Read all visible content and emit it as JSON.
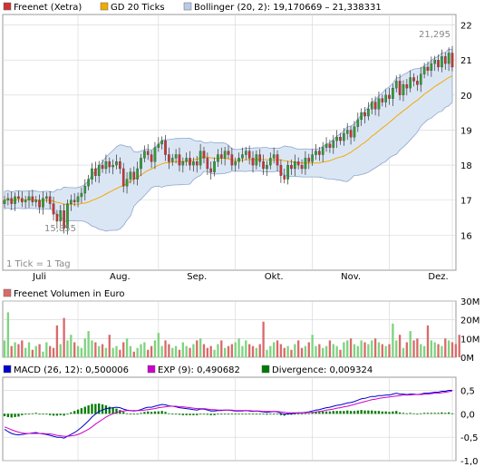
{
  "colors": {
    "price": "#cc3333",
    "sma": "#f2a900",
    "bollinger_fill": "#dbe6f5",
    "bollinger_line": "#8ea6cc",
    "grid": "#d4d4d4",
    "volume_up": "#7fd37f",
    "volume_down": "#d96a6a",
    "macd": "#0000cc",
    "signal": "#cc00cc",
    "divergence": "#007a00"
  },
  "chart_data": [
    {
      "type": "candlestick",
      "legend": [
        {
          "label": "Freenet (Xetra)",
          "swatch": "price"
        },
        {
          "label": "GD 20 Ticks",
          "swatch": "sma"
        },
        {
          "label": "Bollinger (20, 2): 19,170669 – 21,338331",
          "swatch": "bollinger_fill"
        }
      ],
      "y_ticks": [
        "22",
        "21",
        "20",
        "19",
        "18",
        "17",
        "16"
      ],
      "ylim": [
        15.0,
        22.3
      ],
      "x_tick_labels": [
        "Juli",
        "Aug.",
        "Sep.",
        "Okt.",
        "Nov.",
        "Dez."
      ],
      "annotation_high": "21,295",
      "annotation_low": "15,855",
      "footnote": "1 Tick = 1 Tag",
      "closes": [
        17.0,
        17.05,
        16.9,
        17.1,
        17.05,
        16.95,
        17.0,
        17.1,
        16.95,
        17.0,
        16.8,
        17.05,
        17.1,
        16.9,
        16.6,
        16.4,
        16.7,
        16.2,
        16.9,
        17.0,
        16.95,
        17.1,
        17.2,
        17.4,
        17.6,
        17.9,
        17.7,
        18.0,
        17.9,
        18.1,
        17.95,
        18.0,
        18.1,
        17.9,
        17.4,
        17.6,
        17.8,
        17.6,
        17.9,
        18.2,
        18.4,
        18.3,
        18.1,
        18.5,
        18.6,
        18.7,
        18.3,
        18.1,
        18.2,
        18.3,
        18.0,
        18.1,
        18.2,
        18.0,
        18.1,
        18.0,
        18.4,
        18.2,
        17.9,
        17.8,
        18.1,
        18.3,
        18.2,
        18.4,
        18.3,
        18.0,
        18.1,
        18.2,
        18.3,
        18.4,
        18.2,
        18.0,
        18.3,
        18.1,
        17.9,
        18.0,
        18.2,
        18.3,
        18.0,
        17.7,
        17.6,
        18.0,
        17.9,
        18.1,
        18.0,
        17.9,
        18.2,
        18.1,
        18.3,
        18.4,
        18.3,
        18.5,
        18.6,
        18.5,
        18.7,
        18.8,
        18.7,
        18.9,
        19.0,
        18.8,
        19.1,
        19.3,
        19.5,
        19.4,
        19.6,
        19.8,
        19.6,
        19.9,
        19.8,
        20.0,
        19.9,
        20.2,
        20.4,
        20.0,
        20.3,
        20.2,
        20.5,
        20.4,
        20.3,
        20.6,
        20.8,
        20.7,
        20.9,
        21.0,
        20.8,
        21.1,
        20.9,
        21.2,
        20.8
      ]
    },
    {
      "type": "bar",
      "legend": [
        {
          "label": "Freenet Volumen in Euro",
          "swatch": "volume_down"
        }
      ],
      "y_ticks": [
        "30M",
        "20M",
        "10M",
        "0M"
      ],
      "ylim": [
        0,
        30
      ],
      "values": [
        9,
        24,
        6,
        8,
        7,
        9,
        5,
        8,
        4,
        6,
        7,
        3,
        8,
        6,
        5,
        17,
        7,
        21,
        9,
        12,
        8,
        6,
        5,
        10,
        14,
        9,
        8,
        6,
        7,
        5,
        12,
        5,
        6,
        4,
        8,
        10,
        6,
        3,
        5,
        7,
        8,
        4,
        6,
        9,
        13,
        6,
        9,
        7,
        5,
        6,
        4,
        8,
        6,
        5,
        7,
        9,
        10,
        7,
        5,
        6,
        4,
        7,
        9,
        5,
        6,
        7,
        8,
        10,
        6,
        9,
        7,
        6,
        5,
        7,
        19,
        4,
        6,
        8,
        9,
        7,
        5,
        6,
        4,
        7,
        9,
        5,
        6,
        8,
        12,
        6,
        7,
        5,
        6,
        9,
        7,
        6,
        4,
        8,
        9,
        10,
        7,
        6,
        9,
        8,
        7,
        9,
        10,
        8,
        7,
        6,
        7,
        18,
        9,
        12,
        5,
        8,
        14,
        9,
        10,
        7,
        6,
        17,
        9,
        8,
        7,
        6,
        10,
        9,
        8,
        7,
        12
      ]
    },
    {
      "type": "line",
      "legend": [
        {
          "label": "MACD (26, 12): 0,500006",
          "swatch": "macd"
        },
        {
          "label": "EXP (9): 0,490682",
          "swatch": "signal"
        },
        {
          "label": "Divergence: 0,009324",
          "swatch": "divergence"
        }
      ],
      "y_ticks": [
        "0,5",
        "0,0",
        "-0,5",
        "-1,0"
      ],
      "ylim": [
        -1.0,
        0.78
      ],
      "series": [
        {
          "name": "MACD (26, 12)",
          "values": [
            -0.33,
            -0.38,
            -0.42,
            -0.44,
            -0.45,
            -0.44,
            -0.43,
            -0.42,
            -0.41,
            -0.4,
            -0.42,
            -0.43,
            -0.44,
            -0.46,
            -0.48,
            -0.5,
            -0.5,
            -0.52,
            -0.48,
            -0.44,
            -0.4,
            -0.35,
            -0.29,
            -0.22,
            -0.15,
            -0.07,
            -0.01,
            0.05,
            0.08,
            0.11,
            0.12,
            0.13,
            0.14,
            0.13,
            0.1,
            0.08,
            0.07,
            0.06,
            0.07,
            0.09,
            0.12,
            0.14,
            0.14,
            0.16,
            0.18,
            0.2,
            0.19,
            0.17,
            0.16,
            0.15,
            0.13,
            0.12,
            0.11,
            0.1,
            0.09,
            0.08,
            0.1,
            0.1,
            0.08,
            0.06,
            0.06,
            0.07,
            0.07,
            0.08,
            0.08,
            0.07,
            0.06,
            0.06,
            0.06,
            0.07,
            0.06,
            0.05,
            0.06,
            0.05,
            0.04,
            0.03,
            0.04,
            0.05,
            0.04,
            0.01,
            -0.01,
            0.0,
            0.0,
            0.01,
            0.02,
            0.02,
            0.03,
            0.04,
            0.06,
            0.08,
            0.09,
            0.11,
            0.13,
            0.14,
            0.16,
            0.18,
            0.19,
            0.21,
            0.23,
            0.24,
            0.26,
            0.29,
            0.32,
            0.33,
            0.35,
            0.37,
            0.37,
            0.39,
            0.39,
            0.4,
            0.4,
            0.42,
            0.44,
            0.42,
            0.42,
            0.41,
            0.42,
            0.42,
            0.41,
            0.42,
            0.44,
            0.44,
            0.45,
            0.46,
            0.46,
            0.48,
            0.48,
            0.5,
            0.5
          ]
        },
        {
          "name": "EXP (9)",
          "values": [
            -0.28,
            -0.31,
            -0.34,
            -0.37,
            -0.39,
            -0.41,
            -0.42,
            -0.42,
            -0.42,
            -0.42,
            -0.42,
            -0.42,
            -0.43,
            -0.43,
            -0.44,
            -0.46,
            -0.47,
            -0.48,
            -0.48,
            -0.47,
            -0.46,
            -0.44,
            -0.41,
            -0.37,
            -0.33,
            -0.28,
            -0.22,
            -0.17,
            -0.12,
            -0.07,
            -0.03,
            0.0,
            0.03,
            0.05,
            0.06,
            0.07,
            0.07,
            0.07,
            0.07,
            0.07,
            0.08,
            0.09,
            0.1,
            0.11,
            0.13,
            0.14,
            0.15,
            0.16,
            0.16,
            0.16,
            0.15,
            0.15,
            0.14,
            0.13,
            0.12,
            0.11,
            0.11,
            0.11,
            0.1,
            0.09,
            0.09,
            0.08,
            0.08,
            0.08,
            0.08,
            0.08,
            0.07,
            0.07,
            0.07,
            0.07,
            0.07,
            0.06,
            0.06,
            0.06,
            0.05,
            0.05,
            0.05,
            0.05,
            0.05,
            0.04,
            0.03,
            0.02,
            0.02,
            0.02,
            0.02,
            0.02,
            0.02,
            0.03,
            0.03,
            0.04,
            0.05,
            0.06,
            0.08,
            0.09,
            0.1,
            0.12,
            0.13,
            0.15,
            0.16,
            0.18,
            0.2,
            0.22,
            0.24,
            0.26,
            0.28,
            0.3,
            0.31,
            0.33,
            0.34,
            0.35,
            0.36,
            0.37,
            0.38,
            0.39,
            0.4,
            0.4,
            0.4,
            0.41,
            0.41,
            0.41,
            0.42,
            0.42,
            0.43,
            0.44,
            0.44,
            0.45,
            0.46,
            0.47,
            0.49
          ]
        },
        {
          "name": "Divergence",
          "values": [
            -0.05,
            -0.07,
            -0.08,
            -0.07,
            -0.06,
            -0.03,
            -0.01,
            0.0,
            0.01,
            0.02,
            0.0,
            -0.01,
            -0.01,
            -0.03,
            -0.04,
            -0.04,
            -0.03,
            -0.04,
            0.0,
            0.03,
            0.06,
            0.09,
            0.12,
            0.15,
            0.18,
            0.21,
            0.21,
            0.22,
            0.2,
            0.18,
            0.15,
            0.13,
            0.11,
            0.08,
            0.04,
            0.01,
            0.0,
            -0.01,
            0.0,
            0.02,
            0.04,
            0.05,
            0.04,
            0.05,
            0.05,
            0.06,
            0.04,
            0.01,
            0.0,
            -0.01,
            -0.02,
            -0.03,
            -0.03,
            -0.03,
            -0.03,
            -0.03,
            -0.01,
            -0.01,
            -0.02,
            -0.03,
            -0.03,
            -0.01,
            -0.01,
            0.0,
            0.0,
            -0.01,
            -0.01,
            -0.01,
            -0.01,
            0.0,
            -0.01,
            -0.01,
            0.0,
            -0.01,
            -0.01,
            -0.02,
            -0.01,
            0.0,
            -0.01,
            -0.03,
            -0.04,
            -0.02,
            -0.02,
            -0.01,
            0.0,
            0.0,
            0.01,
            0.01,
            0.03,
            0.04,
            0.04,
            0.05,
            0.05,
            0.05,
            0.06,
            0.06,
            0.06,
            0.06,
            0.07,
            0.06,
            0.06,
            0.07,
            0.08,
            0.07,
            0.07,
            0.07,
            0.06,
            0.06,
            0.05,
            0.05,
            0.04,
            0.05,
            0.06,
            0.03,
            0.02,
            0.01,
            0.02,
            0.01,
            0.0,
            0.01,
            0.02,
            0.02,
            0.02,
            0.02,
            0.02,
            0.03,
            0.02,
            0.03,
            0.01
          ]
        }
      ]
    }
  ]
}
